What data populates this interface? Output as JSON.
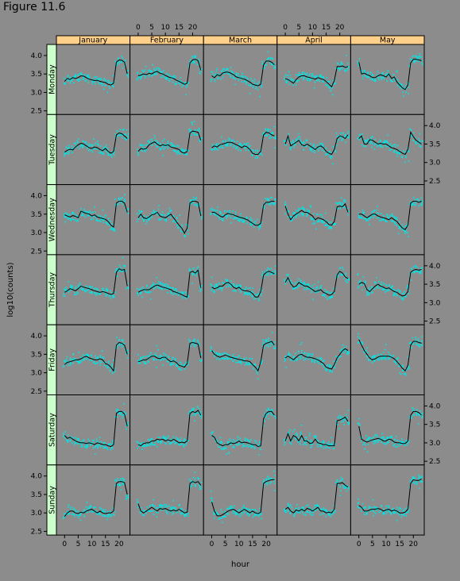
{
  "figure_title": "Figure 11.6",
  "chart_data": {
    "type": "scatter",
    "layout": "trellis",
    "xlabel": "hour",
    "ylabel": "log10(counts)",
    "xlim": [
      -3,
      24
    ],
    "ylim": [
      2.4,
      4.3
    ],
    "x_ticks": [
      0,
      5,
      10,
      15,
      20
    ],
    "y_ticks": [
      "2.5",
      "3.0",
      "3.5",
      "4.0"
    ],
    "columns": [
      "January",
      "February",
      "March",
      "April",
      "May"
    ],
    "rows": [
      "Monday",
      "Tuesday",
      "Wednesday",
      "Thursday",
      "Friday",
      "Saturday",
      "Sunday"
    ],
    "hours": [
      0,
      1,
      2,
      3,
      4,
      5,
      6,
      7,
      8,
      9,
      10,
      11,
      12,
      13,
      14,
      15,
      16,
      17,
      18,
      19,
      20,
      21,
      22,
      23
    ],
    "series": [
      {
        "row": "Monday",
        "col": "January",
        "values": [
          3.3,
          3.38,
          3.35,
          3.4,
          3.38,
          3.4,
          3.45,
          3.44,
          3.4,
          3.36,
          3.34,
          3.32,
          3.33,
          3.3,
          3.28,
          3.27,
          3.22,
          3.2,
          3.25,
          3.82,
          3.88,
          3.87,
          3.82,
          3.5
        ]
      },
      {
        "row": "Monday",
        "col": "February",
        "values": [
          3.45,
          3.47,
          3.5,
          3.48,
          3.52,
          3.5,
          3.55,
          3.57,
          3.52,
          3.5,
          3.46,
          3.42,
          3.4,
          3.38,
          3.33,
          3.3,
          3.26,
          3.22,
          3.25,
          3.8,
          3.88,
          3.9,
          3.86,
          3.6
        ]
      },
      {
        "row": "Monday",
        "col": "March",
        "values": [
          3.45,
          3.4,
          3.48,
          3.45,
          3.52,
          3.55,
          3.55,
          3.52,
          3.48,
          3.42,
          3.4,
          3.38,
          3.36,
          3.32,
          3.28,
          3.22,
          3.2,
          3.18,
          3.22,
          3.75,
          3.85,
          3.85,
          3.82,
          3.75
        ]
      },
      {
        "row": "Monday",
        "col": "April",
        "values": [
          3.37,
          3.35,
          3.3,
          3.25,
          3.35,
          3.42,
          3.45,
          3.45,
          3.42,
          3.4,
          3.38,
          3.36,
          3.4,
          3.37,
          3.35,
          3.3,
          3.22,
          3.15,
          3.32,
          3.7,
          3.7,
          3.72,
          3.68,
          3.7
        ]
      },
      {
        "row": "Monday",
        "col": "May",
        "values": [
          3.82,
          3.5,
          3.52,
          3.48,
          3.45,
          3.4,
          3.4,
          3.45,
          3.48,
          3.45,
          3.42,
          3.5,
          3.38,
          3.42,
          3.28,
          3.2,
          3.12,
          3.08,
          3.2,
          3.8,
          3.9,
          3.9,
          3.88,
          3.86
        ]
      },
      {
        "row": "Tuesday",
        "col": "January",
        "values": [
          3.28,
          3.33,
          3.36,
          3.34,
          3.42,
          3.48,
          3.52,
          3.5,
          3.45,
          3.4,
          3.38,
          3.42,
          3.4,
          3.35,
          3.32,
          3.38,
          3.3,
          3.25,
          3.3,
          3.75,
          3.8,
          3.78,
          3.72,
          3.65
        ]
      },
      {
        "row": "Tuesday",
        "col": "February",
        "values": [
          3.3,
          3.38,
          3.36,
          3.38,
          3.48,
          3.52,
          3.56,
          3.5,
          3.45,
          3.48,
          3.46,
          3.48,
          3.42,
          3.4,
          3.38,
          3.35,
          3.28,
          3.25,
          3.3,
          3.8,
          3.85,
          3.84,
          3.82,
          3.6
        ]
      },
      {
        "row": "Tuesday",
        "col": "March",
        "values": [
          3.4,
          3.45,
          3.42,
          3.48,
          3.5,
          3.52,
          3.55,
          3.55,
          3.52,
          3.48,
          3.45,
          3.4,
          3.45,
          3.42,
          3.35,
          3.25,
          3.22,
          3.22,
          3.3,
          3.75,
          3.82,
          3.8,
          3.75,
          3.72
        ]
      },
      {
        "row": "Tuesday",
        "col": "April",
        "values": [
          3.5,
          3.72,
          3.45,
          3.5,
          3.55,
          3.6,
          3.48,
          3.45,
          3.5,
          3.45,
          3.4,
          3.35,
          3.42,
          3.45,
          3.4,
          3.3,
          3.25,
          3.22,
          3.35,
          3.65,
          3.72,
          3.7,
          3.65,
          3.75
        ]
      },
      {
        "row": "Tuesday",
        "col": "May",
        "values": [
          3.65,
          3.72,
          3.5,
          3.5,
          3.62,
          3.6,
          3.55,
          3.5,
          3.52,
          3.5,
          3.5,
          3.45,
          3.4,
          3.38,
          3.35,
          3.3,
          3.25,
          3.22,
          3.35,
          3.82,
          3.7,
          3.6,
          3.55,
          3.5
        ]
      },
      {
        "row": "Wednesday",
        "col": "January",
        "values": [
          3.48,
          3.45,
          3.42,
          3.46,
          3.44,
          3.4,
          3.58,
          3.55,
          3.52,
          3.5,
          3.45,
          3.48,
          3.42,
          3.4,
          3.38,
          3.36,
          3.3,
          3.2,
          3.15,
          3.8,
          3.85,
          3.85,
          3.8,
          3.55
        ]
      },
      {
        "row": "Wednesday",
        "col": "February",
        "values": [
          3.4,
          3.5,
          3.4,
          3.38,
          3.42,
          3.48,
          3.5,
          3.55,
          3.45,
          3.42,
          3.4,
          3.45,
          3.5,
          3.4,
          3.3,
          3.2,
          3.12,
          2.98,
          3.12,
          3.8,
          3.85,
          3.85,
          3.82,
          3.45
        ]
      },
      {
        "row": "Wednesday",
        "col": "March",
        "values": [
          3.55,
          3.55,
          3.5,
          3.45,
          3.42,
          3.48,
          3.52,
          3.5,
          3.48,
          3.45,
          3.42,
          3.4,
          3.38,
          3.35,
          3.3,
          3.25,
          3.2,
          3.2,
          3.25,
          3.75,
          3.82,
          3.82,
          3.85,
          3.85
        ]
      },
      {
        "row": "Wednesday",
        "col": "April",
        "values": [
          3.72,
          3.5,
          3.35,
          3.45,
          3.5,
          3.55,
          3.6,
          3.55,
          3.55,
          3.5,
          3.45,
          3.35,
          3.4,
          3.38,
          3.35,
          3.3,
          3.22,
          3.2,
          3.3,
          3.7,
          3.72,
          3.7,
          3.78,
          3.55
        ]
      },
      {
        "row": "Wednesday",
        "col": "May",
        "values": [
          3.5,
          3.5,
          3.45,
          3.4,
          3.45,
          3.5,
          3.5,
          3.45,
          3.42,
          3.4,
          3.38,
          3.35,
          3.4,
          3.35,
          3.3,
          3.2,
          3.12,
          3.08,
          3.2,
          3.8,
          3.85,
          3.85,
          3.82,
          3.85
        ]
      },
      {
        "row": "Thursday",
        "col": "January",
        "values": [
          3.28,
          3.32,
          3.38,
          3.35,
          3.32,
          3.38,
          3.45,
          3.42,
          3.4,
          3.38,
          3.35,
          3.32,
          3.3,
          3.28,
          3.3,
          3.28,
          3.25,
          3.22,
          3.25,
          3.82,
          3.92,
          3.88,
          3.9,
          3.45
        ]
      },
      {
        "row": "Thursday",
        "col": "February",
        "values": [
          3.28,
          3.32,
          3.35,
          3.35,
          3.35,
          3.4,
          3.45,
          3.48,
          3.45,
          3.42,
          3.4,
          3.38,
          3.35,
          3.3,
          3.28,
          3.25,
          3.22,
          3.18,
          3.15,
          3.82,
          3.85,
          3.8,
          3.88,
          3.4
        ]
      },
      {
        "row": "Thursday",
        "col": "March",
        "values": [
          3.42,
          3.38,
          3.4,
          3.45,
          3.45,
          3.52,
          3.55,
          3.5,
          3.42,
          3.38,
          3.42,
          3.35,
          3.32,
          3.32,
          3.3,
          3.25,
          3.15,
          3.15,
          3.3,
          3.75,
          3.82,
          3.85,
          3.82,
          3.78
        ]
      },
      {
        "row": "Thursday",
        "col": "April",
        "values": [
          3.55,
          3.68,
          3.52,
          3.42,
          3.45,
          3.55,
          3.5,
          3.45,
          3.45,
          3.4,
          3.35,
          3.3,
          3.32,
          3.35,
          3.28,
          3.25,
          3.2,
          3.22,
          3.3,
          3.75,
          3.85,
          3.8,
          3.7,
          3.65
        ]
      },
      {
        "row": "Thursday",
        "col": "May",
        "values": [
          3.5,
          3.55,
          3.52,
          3.35,
          3.3,
          3.38,
          3.45,
          3.5,
          3.45,
          3.42,
          3.38,
          3.4,
          3.35,
          3.3,
          3.28,
          3.22,
          3.18,
          3.2,
          3.3,
          3.82,
          3.88,
          3.9,
          3.88,
          3.9
        ]
      },
      {
        "row": "Friday",
        "col": "January",
        "values": [
          3.22,
          3.28,
          3.3,
          3.32,
          3.35,
          3.35,
          3.38,
          3.42,
          3.45,
          3.4,
          3.38,
          3.35,
          3.35,
          3.38,
          3.35,
          3.25,
          3.22,
          3.15,
          3.05,
          3.75,
          3.82,
          3.8,
          3.75,
          3.5
        ]
      },
      {
        "row": "Friday",
        "col": "February",
        "values": [
          3.3,
          3.32,
          3.35,
          3.35,
          3.4,
          3.45,
          3.45,
          3.4,
          3.38,
          3.42,
          3.42,
          3.35,
          3.3,
          3.32,
          3.28,
          3.2,
          3.18,
          3.15,
          3.25,
          3.8,
          3.82,
          3.8,
          3.78,
          3.4
        ]
      },
      {
        "row": "Friday",
        "col": "March",
        "values": [
          3.6,
          3.5,
          3.45,
          3.42,
          3.45,
          3.48,
          3.45,
          3.42,
          3.4,
          3.38,
          3.36,
          3.35,
          3.32,
          3.32,
          3.3,
          3.22,
          3.15,
          3.05,
          3.3,
          3.75,
          3.8,
          3.82,
          3.85,
          3.75
        ]
      },
      {
        "row": "Friday",
        "col": "April",
        "values": [
          3.4,
          3.45,
          3.4,
          3.35,
          3.42,
          3.48,
          3.5,
          3.45,
          3.42,
          3.42,
          3.4,
          3.38,
          3.35,
          3.3,
          3.25,
          3.15,
          3.12,
          3.1,
          3.22,
          3.4,
          3.5,
          3.6,
          3.65,
          3.6
        ]
      },
      {
        "row": "Friday",
        "col": "May",
        "values": [
          3.9,
          3.75,
          3.6,
          3.5,
          3.4,
          3.35,
          3.38,
          3.42,
          3.45,
          3.45,
          3.45,
          3.45,
          3.42,
          3.38,
          3.3,
          3.22,
          3.12,
          3.05,
          3.2,
          3.75,
          3.85,
          3.85,
          3.82,
          3.8
        ]
      },
      {
        "row": "Saturday",
        "col": "January",
        "values": [
          3.2,
          3.12,
          3.15,
          3.1,
          3.05,
          3.02,
          3.0,
          3.0,
          2.98,
          3.0,
          2.98,
          2.95,
          3.0,
          2.98,
          2.95,
          2.95,
          2.92,
          2.9,
          2.95,
          3.8,
          3.85,
          3.85,
          3.78,
          3.45
        ]
      },
      {
        "row": "Saturday",
        "col": "February",
        "values": [
          2.95,
          2.92,
          2.98,
          3.0,
          3.0,
          3.05,
          3.05,
          3.1,
          3.08,
          3.1,
          3.05,
          3.08,
          3.05,
          3.1,
          3.05,
          3.0,
          3.02,
          3.0,
          3.05,
          3.8,
          3.85,
          3.82,
          3.88,
          3.75
        ]
      },
      {
        "row": "Saturday",
        "col": "March",
        "values": [
          3.2,
          3.15,
          3.0,
          2.95,
          2.92,
          2.95,
          2.95,
          3.0,
          2.98,
          3.0,
          3.05,
          3.0,
          3.02,
          3.0,
          2.98,
          2.95,
          2.95,
          2.9,
          2.92,
          3.65,
          3.8,
          3.85,
          3.85,
          3.75
        ]
      },
      {
        "row": "Saturday",
        "col": "April",
        "values": [
          3.05,
          3.25,
          3.05,
          3.2,
          3.15,
          3.05,
          3.2,
          3.05,
          3.05,
          2.98,
          3.0,
          3.1,
          3.0,
          2.98,
          2.95,
          2.95,
          2.92,
          2.92,
          2.92,
          3.6,
          3.62,
          3.65,
          3.7,
          3.58
        ]
      },
      {
        "row": "Saturday",
        "col": "May",
        "values": [
          3.45,
          3.1,
          3.05,
          3.02,
          3.05,
          3.08,
          3.1,
          3.12,
          3.1,
          3.05,
          3.05,
          3.1,
          3.08,
          3.02,
          3.0,
          3.0,
          2.98,
          2.98,
          3.05,
          3.75,
          3.85,
          3.85,
          3.82,
          3.75
        ]
      },
      {
        "row": "Sunday",
        "col": "January",
        "values": [
          2.9,
          3.0,
          3.05,
          3.05,
          3.0,
          2.98,
          3.02,
          3.0,
          3.05,
          3.08,
          3.1,
          3.05,
          3.0,
          3.05,
          3.0,
          2.98,
          3.0,
          3.0,
          3.05,
          3.8,
          3.85,
          3.85,
          3.82,
          3.5
        ]
      },
      {
        "row": "Sunday",
        "col": "February",
        "values": [
          3.25,
          3.05,
          3.0,
          3.05,
          3.1,
          3.15,
          3.1,
          3.05,
          3.12,
          3.1,
          3.12,
          3.08,
          3.05,
          3.08,
          3.05,
          3.1,
          3.05,
          3.0,
          3.02,
          3.8,
          3.85,
          3.82,
          3.85,
          3.75
        ]
      },
      {
        "row": "Sunday",
        "col": "March",
        "values": [
          3.3,
          3.05,
          2.92,
          2.92,
          2.95,
          3.0,
          3.05,
          3.08,
          3.1,
          3.05,
          3.0,
          3.05,
          3.1,
          3.05,
          3.0,
          3.05,
          3.0,
          2.98,
          3.02,
          3.8,
          3.85,
          3.88,
          3.9,
          3.9
        ]
      },
      {
        "row": "Sunday",
        "col": "April",
        "values": [
          3.1,
          3.15,
          3.05,
          3.0,
          3.08,
          3.05,
          3.1,
          3.05,
          3.12,
          3.1,
          3.05,
          3.1,
          3.15,
          3.05,
          3.05,
          3.0,
          3.02,
          3.0,
          3.1,
          3.8,
          3.8,
          3.82,
          3.75,
          3.7
        ]
      },
      {
        "row": "Sunday",
        "col": "May",
        "values": [
          3.2,
          3.15,
          3.05,
          3.05,
          3.08,
          3.1,
          3.1,
          3.12,
          3.1,
          3.05,
          3.08,
          3.1,
          3.05,
          3.08,
          3.05,
          3.0,
          3.0,
          3.02,
          3.1,
          3.8,
          3.9,
          3.88,
          3.88,
          3.92
        ]
      }
    ],
    "colors": {
      "background": "#8c8c8c",
      "panel": "#8c8c8c",
      "strip_column": "#ffd08a",
      "strip_row": "#ccffcc",
      "points": "#00e5e5",
      "line": "#000000"
    },
    "grid": false
  }
}
